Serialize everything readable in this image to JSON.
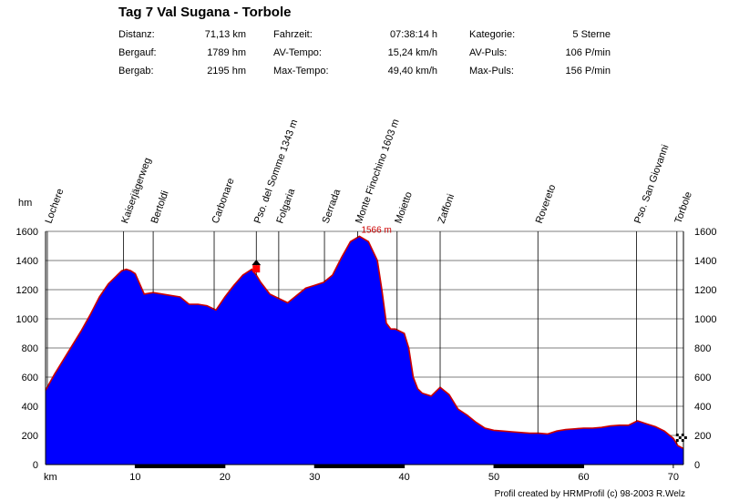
{
  "title": "Tag 7 Val Sugana - Torbole",
  "stats": [
    {
      "label": "Distanz:",
      "value": "71,13 km"
    },
    {
      "label": "Fahrzeit:",
      "value": "07:38:14 h"
    },
    {
      "label": "Kategorie:",
      "value": "5 Sterne"
    },
    {
      "label": "Bergauf:",
      "value": "1789 hm"
    },
    {
      "label": "AV-Tempo:",
      "value": "15,24 km/h"
    },
    {
      "label": "AV-Puls:",
      "value": "106 P/min"
    },
    {
      "label": "Bergab:",
      "value": "2195 hm"
    },
    {
      "label": "Max-Tempo:",
      "value": "49,40 km/h"
    },
    {
      "label": "Max-Puls:",
      "value": "156 P/min"
    }
  ],
  "footer": "Profil created by HRMProfil (c) 98-2003 R.Welz",
  "colors": {
    "fill": "#0000ff",
    "outline": "#cc0000",
    "axis": "#000000",
    "grid": "#000000"
  },
  "chart_data": {
    "type": "area",
    "ylabel": "hm",
    "xlabel": "km",
    "xlim": [
      0,
      71.13
    ],
    "ylim": [
      0,
      1600
    ],
    "x_ticks": [
      10,
      20,
      30,
      40,
      50,
      60,
      70
    ],
    "y_ticks": [
      0,
      200,
      400,
      600,
      800,
      1000,
      1200,
      1400,
      1600
    ],
    "grid": true,
    "series": [
      {
        "x": [
          0,
          1,
          2,
          3,
          4,
          5,
          6,
          7,
          8,
          8.5,
          9,
          9.5,
          10,
          11,
          12,
          13,
          14,
          15,
          16,
          17,
          18,
          19,
          20,
          21,
          22,
          23,
          23.5,
          24,
          25,
          26,
          27,
          28,
          29,
          30,
          31,
          32,
          33,
          34,
          35,
          36,
          37,
          37.5,
          38,
          38.5,
          39,
          40,
          40.5,
          41,
          41.5,
          42,
          43,
          44,
          45,
          46,
          47,
          48,
          49,
          50,
          51,
          52,
          53,
          54,
          55,
          56,
          57,
          58,
          59,
          60,
          61,
          62,
          63,
          64,
          65,
          66,
          67,
          68,
          69,
          70,
          70.5,
          71.13
        ],
        "y": [
          510,
          620,
          720,
          820,
          920,
          1030,
          1150,
          1240,
          1300,
          1330,
          1340,
          1330,
          1310,
          1170,
          1180,
          1170,
          1160,
          1150,
          1100,
          1100,
          1090,
          1060,
          1150,
          1230,
          1300,
          1340,
          1300,
          1250,
          1170,
          1140,
          1110,
          1160,
          1210,
          1230,
          1250,
          1300,
          1420,
          1530,
          1566,
          1530,
          1400,
          1200,
          970,
          930,
          930,
          900,
          800,
          600,
          520,
          490,
          470,
          530,
          480,
          380,
          340,
          290,
          250,
          235,
          230,
          225,
          220,
          215,
          215,
          210,
          230,
          240,
          245,
          250,
          250,
          255,
          265,
          270,
          270,
          300,
          280,
          260,
          230,
          180,
          130,
          110
        ]
      }
    ],
    "waypoints": [
      {
        "name": "Lochere",
        "km": 0.2
      },
      {
        "name": "Kaiserjägerweg",
        "km": 8.7
      },
      {
        "name": "Bertoldi",
        "km": 12.0
      },
      {
        "name": "Carbonare",
        "km": 18.8
      },
      {
        "name": "Pso. del Somme 1343 m",
        "km": 23.5
      },
      {
        "name": "Folgaria",
        "km": 26.0
      },
      {
        "name": "Serrada",
        "km": 31.1
      },
      {
        "name": "Monte Finochino 1603 m",
        "km": 34.8
      },
      {
        "name": "Moietto",
        "km": 39.2
      },
      {
        "name": "Zaffoni",
        "km": 44.0
      },
      {
        "name": "Rovereto",
        "km": 54.9
      },
      {
        "name": "Pso. San Giovanni",
        "km": 65.9
      },
      {
        "name": "Torbole",
        "km": 70.4
      }
    ],
    "annotations": [
      {
        "text": "1566 m",
        "km": 35.0,
        "hm": 1566
      },
      {
        "text": "",
        "km": 23.5,
        "hm": 1343
      }
    ]
  }
}
